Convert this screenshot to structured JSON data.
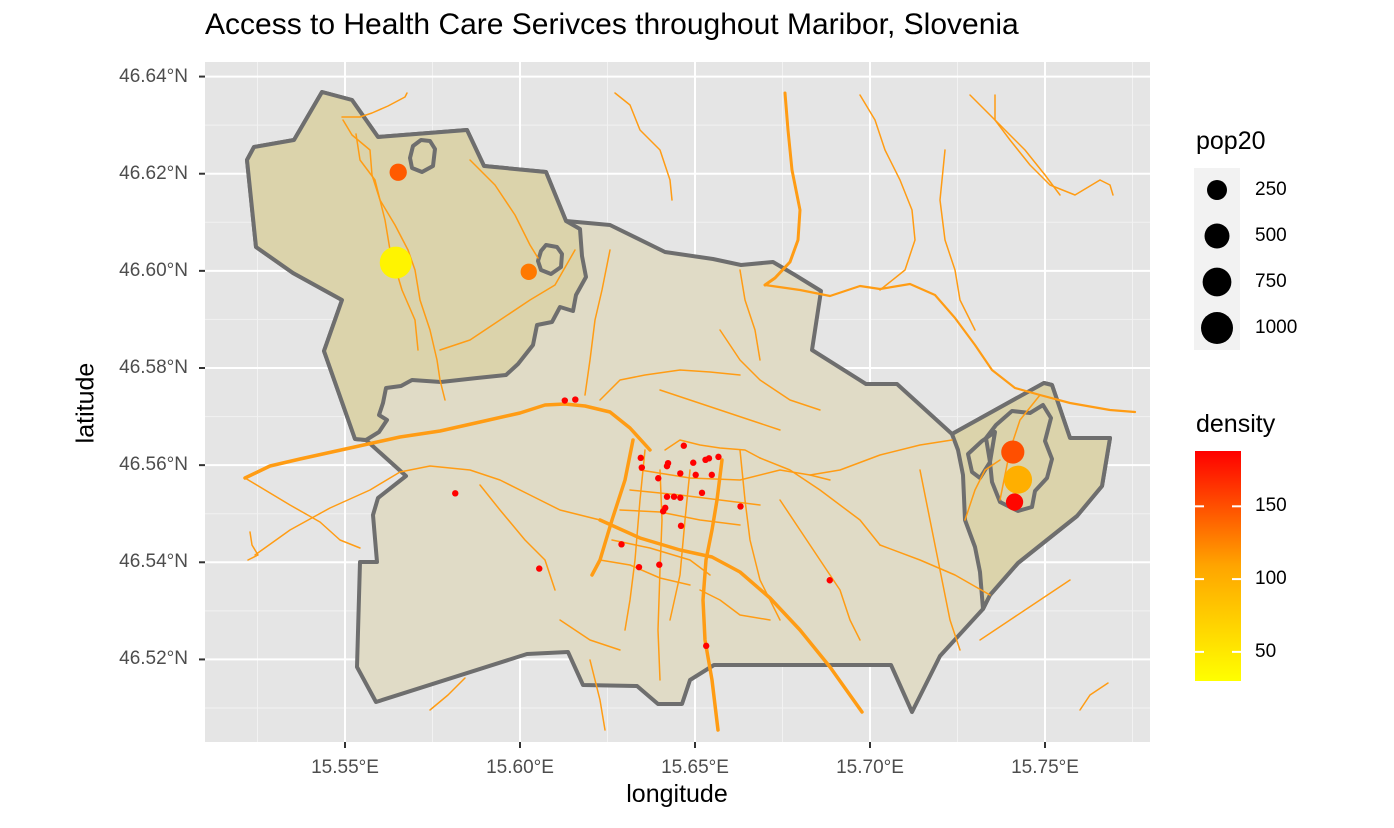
{
  "chart_data": {
    "type": "map",
    "title": "Access to Health Care Serivces throughout Maribor, Slovenia",
    "xlabel": "longitude",
    "ylabel": "latitude",
    "xlim": [
      15.51,
      15.78
    ],
    "ylim": [
      46.503,
      46.643
    ],
    "x_ticks": [
      {
        "value": 15.55,
        "label": "15.55°E"
      },
      {
        "value": 15.6,
        "label": "15.60°E"
      },
      {
        "value": 15.65,
        "label": "15.65°E"
      },
      {
        "value": 15.7,
        "label": "15.70°E"
      },
      {
        "value": 15.75,
        "label": "15.75°E"
      }
    ],
    "y_ticks": [
      {
        "value": 46.52,
        "label": "46.52°N"
      },
      {
        "value": 46.54,
        "label": "46.54°N"
      },
      {
        "value": 46.56,
        "label": "46.56°N"
      },
      {
        "value": 46.58,
        "label": "46.58°N"
      },
      {
        "value": 46.6,
        "label": "46.60°N"
      },
      {
        "value": 46.62,
        "label": "46.62°N"
      },
      {
        "value": 46.64,
        "label": "46.64°N"
      }
    ],
    "grid": true,
    "legend_position": "right",
    "colors": {
      "panel": "#e5e5e5",
      "grid": "#ffffff",
      "boundary": "#6e6e6e",
      "region_fill": "#e0dbc6",
      "region_fill_dark": "#dcd3aa",
      "roads": "#ff9c14",
      "health_points": "#ff0000"
    },
    "size_legend": {
      "title": "pop20",
      "entries": [
        {
          "value": 250,
          "label": "250"
        },
        {
          "value": 500,
          "label": "500"
        },
        {
          "value": 750,
          "label": "750"
        },
        {
          "value": 1000,
          "label": "1000"
        }
      ]
    },
    "color_legend": {
      "title": "density",
      "range": [
        30,
        188
      ],
      "low_color": "#ffff00",
      "mid_color": "#ffa500",
      "high_color": "#ff0000",
      "ticks": [
        {
          "value": 50,
          "label": "50"
        },
        {
          "value": 100,
          "label": "100"
        },
        {
          "value": 150,
          "label": "150"
        }
      ]
    },
    "settlements": [
      {
        "lon": 15.5645,
        "lat": 46.6017,
        "pop20": 1000,
        "density": 40
      },
      {
        "lon": 15.5652,
        "lat": 46.6203,
        "pop20": 150,
        "density": 145
      },
      {
        "lon": 15.6025,
        "lat": 46.5998,
        "pop20": 120,
        "density": 130
      },
      {
        "lon": 15.7408,
        "lat": 46.5627,
        "pop20": 400,
        "density": 150
      },
      {
        "lon": 15.7423,
        "lat": 46.557,
        "pop20": 700,
        "density": 100
      },
      {
        "lon": 15.7413,
        "lat": 46.5524,
        "pop20": 150,
        "density": 185
      }
    ],
    "health_services": [
      {
        "lon": 15.6128,
        "lat": 46.5733
      },
      {
        "lon": 15.6158,
        "lat": 46.5735
      },
      {
        "lon": 15.5815,
        "lat": 46.5542
      },
      {
        "lon": 15.6468,
        "lat": 46.564
      },
      {
        "lon": 15.6345,
        "lat": 46.5615
      },
      {
        "lon": 15.6348,
        "lat": 46.5595
      },
      {
        "lon": 15.6395,
        "lat": 46.5573
      },
      {
        "lon": 15.642,
        "lat": 46.5598
      },
      {
        "lon": 15.6423,
        "lat": 46.5604
      },
      {
        "lon": 15.6458,
        "lat": 46.5583
      },
      {
        "lon": 15.6495,
        "lat": 46.5605
      },
      {
        "lon": 15.6502,
        "lat": 46.558
      },
      {
        "lon": 15.653,
        "lat": 46.5611
      },
      {
        "lon": 15.654,
        "lat": 46.5614
      },
      {
        "lon": 15.6567,
        "lat": 46.5617
      },
      {
        "lon": 15.6548,
        "lat": 46.558
      },
      {
        "lon": 15.642,
        "lat": 46.5535
      },
      {
        "lon": 15.644,
        "lat": 46.5535
      },
      {
        "lon": 15.6458,
        "lat": 46.5533
      },
      {
        "lon": 15.652,
        "lat": 46.5543
      },
      {
        "lon": 15.6415,
        "lat": 46.5512
      },
      {
        "lon": 15.6409,
        "lat": 46.5505
      },
      {
        "lon": 15.663,
        "lat": 46.5515
      },
      {
        "lon": 15.646,
        "lat": 46.5475
      },
      {
        "lon": 15.629,
        "lat": 46.5437
      },
      {
        "lon": 15.6055,
        "lat": 46.5387
      },
      {
        "lon": 15.634,
        "lat": 46.539
      },
      {
        "lon": 15.6398,
        "lat": 46.5395
      },
      {
        "lon": 15.6885,
        "lat": 46.5363
      },
      {
        "lon": 15.6532,
        "lat": 46.5228
      }
    ],
    "boundaries": {
      "municipality": [
        [
          15.513,
          46.619
        ],
        [
          15.5165,
          46.6225
        ],
        [
          15.529,
          46.6245
        ],
        [
          15.5355,
          46.6338
        ],
        [
          15.5445,
          46.6318
        ],
        [
          15.5505,
          46.6245
        ],
        [
          15.5805,
          46.626
        ],
        [
          15.5855,
          46.6185
        ],
        [
          15.6065,
          46.6135
        ],
        [
          15.611,
          46.6075
        ],
        [
          15.624,
          46.607
        ],
        [
          15.635,
          46.6005
        ],
        [
          15.6495,
          46.6005
        ],
        [
          15.652,
          46.596
        ],
        [
          15.6565,
          46.595
        ],
        [
          15.6625,
          46.5975
        ],
        [
          15.668,
          46.5975
        ],
        [
          15.675,
          46.5935
        ],
        [
          15.683,
          46.593
        ],
        [
          15.6885,
          46.5865
        ],
        [
          15.7022,
          46.5843
        ],
        [
          15.692,
          46.5755
        ],
        [
          15.698,
          46.5725
        ],
        [
          15.7095,
          46.5745
        ],
        [
          15.721,
          46.5725
        ],
        [
          15.724,
          46.5645
        ],
        [
          15.754,
          46.5745
        ],
        [
          15.757,
          46.5708
        ],
        [
          15.76,
          46.5645
        ],
        [
          15.7665,
          46.5645
        ],
        [
          15.763,
          46.5545
        ],
        [
          15.752,
          46.5415
        ],
        [
          15.737,
          46.538
        ],
        [
          15.7335,
          46.537
        ],
        [
          15.725,
          46.53
        ],
        [
          15.72,
          46.5235
        ],
        [
          15.7155,
          46.5195
        ],
        [
          15.708,
          46.509
        ],
        [
          15.687,
          46.512
        ],
        [
          15.675,
          46.518
        ],
        [
          15.653,
          46.5182
        ],
        [
          15.634,
          46.517
        ],
        [
          15.621,
          46.509
        ],
        [
          15.608,
          46.51
        ],
        [
          15.6,
          46.518
        ],
        [
          15.582,
          46.5145
        ],
        [
          15.56,
          46.511
        ],
        [
          15.543,
          46.5185
        ],
        [
          15.545,
          46.5295
        ],
        [
          15.541,
          46.54
        ],
        [
          15.543,
          46.5435
        ],
        [
          15.5355,
          46.5615
        ],
        [
          15.527,
          46.5535
        ],
        [
          15.5245,
          46.56
        ],
        [
          15.521,
          46.565
        ],
        [
          15.519,
          46.556
        ],
        [
          15.523,
          46.546
        ],
        [
          15.5225,
          46.538
        ],
        [
          15.5175,
          46.535
        ],
        [
          15.511,
          46.536
        ],
        [
          15.51,
          46.542
        ],
        [
          15.512,
          46.55
        ],
        [
          15.5115,
          46.56
        ],
        [
          15.512,
          46.57
        ],
        [
          15.51,
          46.59
        ],
        [
          15.508,
          46.605
        ],
        [
          15.51,
          46.613
        ],
        [
          15.513,
          46.619
        ]
      ]
    }
  }
}
